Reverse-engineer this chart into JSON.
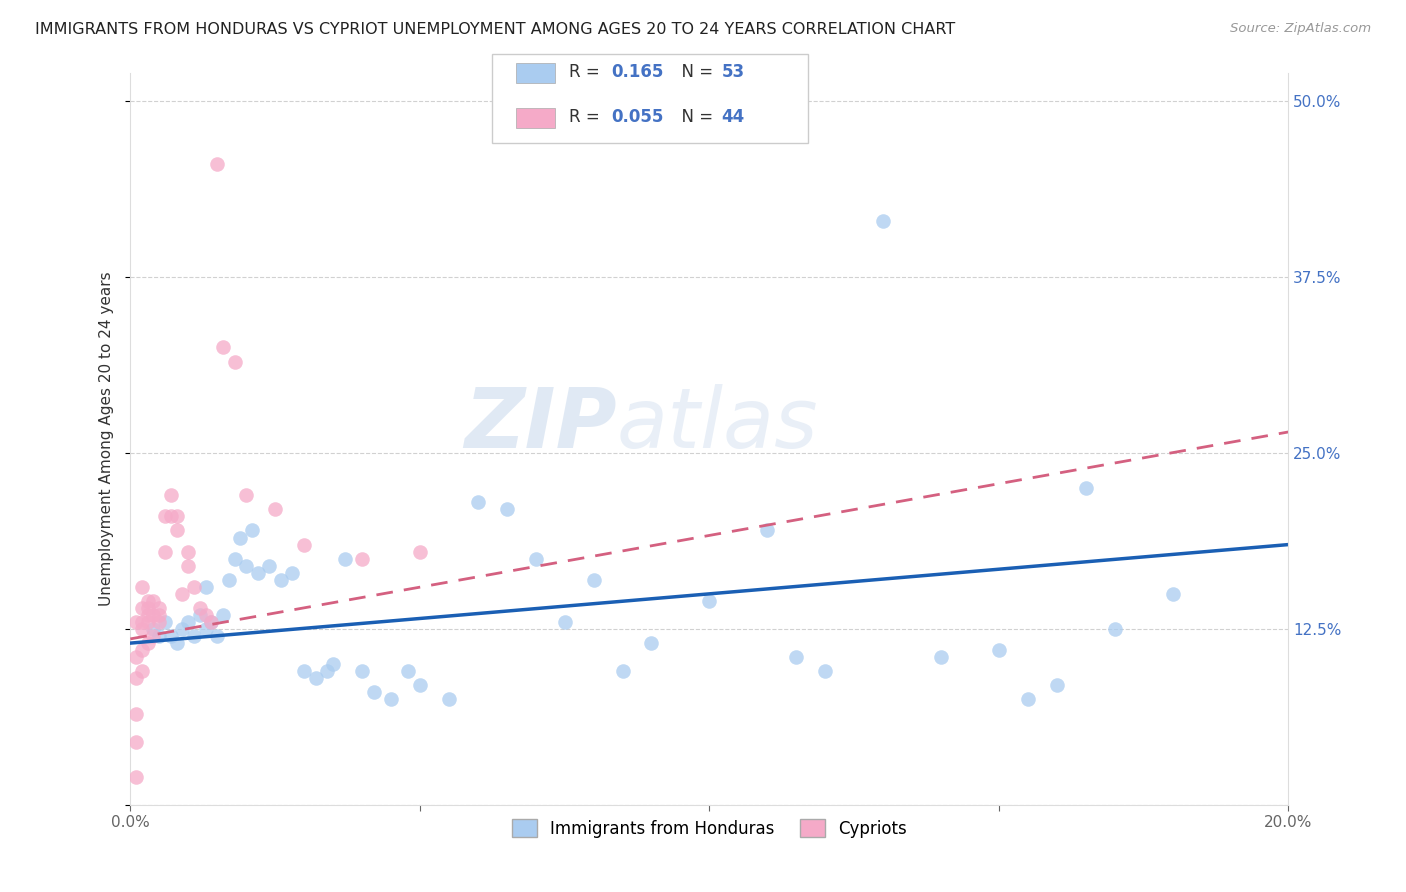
{
  "title": "IMMIGRANTS FROM HONDURAS VS CYPRIOT UNEMPLOYMENT AMONG AGES 20 TO 24 YEARS CORRELATION CHART",
  "source": "Source: ZipAtlas.com",
  "ylabel": "Unemployment Among Ages 20 to 24 years",
  "xlim": [
    0.0,
    0.2
  ],
  "ylim": [
    0.0,
    0.52
  ],
  "blue_R": 0.165,
  "blue_N": 53,
  "pink_R": 0.055,
  "pink_N": 44,
  "blue_color": "#aaccf0",
  "pink_color": "#f5aac8",
  "blue_line_color": "#1a5fb4",
  "pink_line_color": "#d46080",
  "watermark_zip": "ZIP",
  "watermark_atlas": "atlas",
  "legend_blue_label": "Immigrants from Honduras",
  "legend_pink_label": "Cypriots",
  "blue_scatter_x": [
    0.004,
    0.005,
    0.006,
    0.007,
    0.008,
    0.009,
    0.01,
    0.011,
    0.012,
    0.013,
    0.013,
    0.014,
    0.015,
    0.016,
    0.017,
    0.018,
    0.019,
    0.02,
    0.021,
    0.022,
    0.024,
    0.026,
    0.028,
    0.03,
    0.032,
    0.034,
    0.035,
    0.037,
    0.04,
    0.042,
    0.045,
    0.048,
    0.05,
    0.055,
    0.06,
    0.065,
    0.07,
    0.075,
    0.08,
    0.085,
    0.09,
    0.1,
    0.11,
    0.115,
    0.12,
    0.13,
    0.14,
    0.15,
    0.155,
    0.16,
    0.165,
    0.17,
    0.18
  ],
  "blue_scatter_y": [
    0.125,
    0.12,
    0.13,
    0.12,
    0.115,
    0.125,
    0.13,
    0.12,
    0.135,
    0.125,
    0.155,
    0.13,
    0.12,
    0.135,
    0.16,
    0.175,
    0.19,
    0.17,
    0.195,
    0.165,
    0.17,
    0.16,
    0.165,
    0.095,
    0.09,
    0.095,
    0.1,
    0.175,
    0.095,
    0.08,
    0.075,
    0.095,
    0.085,
    0.075,
    0.215,
    0.21,
    0.175,
    0.13,
    0.16,
    0.095,
    0.115,
    0.145,
    0.195,
    0.105,
    0.095,
    0.415,
    0.105,
    0.11,
    0.075,
    0.085,
    0.225,
    0.125,
    0.15
  ],
  "pink_scatter_x": [
    0.001,
    0.001,
    0.001,
    0.001,
    0.001,
    0.001,
    0.002,
    0.002,
    0.002,
    0.002,
    0.002,
    0.002,
    0.003,
    0.003,
    0.003,
    0.003,
    0.003,
    0.004,
    0.004,
    0.004,
    0.005,
    0.005,
    0.005,
    0.006,
    0.006,
    0.007,
    0.007,
    0.008,
    0.008,
    0.009,
    0.01,
    0.01,
    0.011,
    0.012,
    0.013,
    0.014,
    0.015,
    0.016,
    0.018,
    0.02,
    0.025,
    0.03,
    0.04,
    0.05
  ],
  "pink_scatter_y": [
    0.02,
    0.045,
    0.065,
    0.09,
    0.105,
    0.13,
    0.095,
    0.11,
    0.125,
    0.13,
    0.14,
    0.155,
    0.115,
    0.13,
    0.135,
    0.14,
    0.145,
    0.12,
    0.135,
    0.145,
    0.13,
    0.135,
    0.14,
    0.18,
    0.205,
    0.205,
    0.22,
    0.195,
    0.205,
    0.15,
    0.17,
    0.18,
    0.155,
    0.14,
    0.135,
    0.13,
    0.455,
    0.325,
    0.315,
    0.22,
    0.21,
    0.185,
    0.175,
    0.18
  ],
  "pink_line_x0": 0.0,
  "pink_line_y0": 0.118,
  "pink_line_x1": 0.2,
  "pink_line_y1": 0.265,
  "blue_line_x0": 0.0,
  "blue_line_y0": 0.115,
  "blue_line_x1": 0.2,
  "blue_line_y1": 0.185
}
